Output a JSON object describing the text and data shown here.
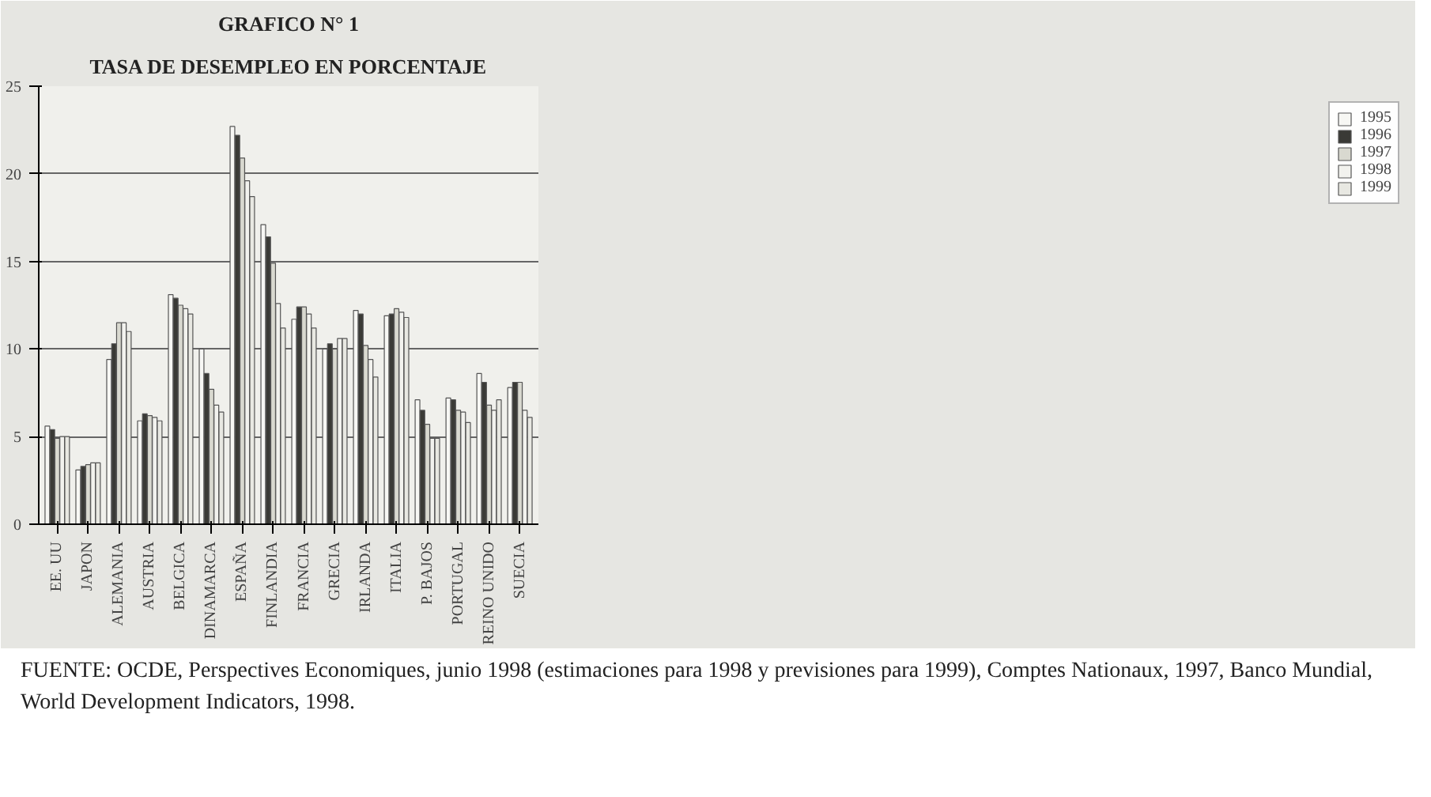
{
  "chart_data": {
    "type": "bar",
    "title": "GRAFICO N° 1",
    "subtitle": "TASA DE DESEMPLEO EN PORCENTAJE",
    "categories": [
      "EE. UU",
      "JAPON",
      "ALEMANIA",
      "AUSTRIA",
      "BELGICA",
      "DINAMARCA",
      "ESPAÑA",
      "FINLANDIA",
      "FRANCIA",
      "GRECIA",
      "IRLANDA",
      "ITALIA",
      "P. BAJOS",
      "PORTUGAL",
      "REINO UNIDO",
      "SUECIA"
    ],
    "series": [
      {
        "name": "1995",
        "color": "#f7f7f4",
        "values": [
          5.6,
          3.1,
          9.4,
          5.9,
          13.1,
          10.0,
          22.7,
          17.1,
          11.7,
          10.0,
          12.2,
          11.9,
          7.1,
          7.2,
          8.6,
          7.8
        ]
      },
      {
        "name": "1996",
        "color": "#3a3a36",
        "values": [
          5.4,
          3.3,
          10.3,
          6.3,
          12.9,
          8.6,
          22.2,
          16.4,
          12.4,
          10.3,
          12.0,
          12.0,
          6.5,
          7.1,
          8.1,
          8.1
        ]
      },
      {
        "name": "1997",
        "color": "#d9d9d0",
        "values": [
          4.9,
          3.4,
          11.5,
          6.2,
          12.5,
          7.7,
          20.9,
          14.9,
          12.4,
          10.0,
          10.2,
          12.3,
          5.7,
          6.5,
          6.8,
          8.1
        ]
      },
      {
        "name": "1998",
        "color": "#f2f2ee",
        "values": [
          5.0,
          3.5,
          11.5,
          6.1,
          12.3,
          6.8,
          19.6,
          12.6,
          12.0,
          10.6,
          9.4,
          12.1,
          4.9,
          6.4,
          6.5,
          6.5
        ]
      },
      {
        "name": "1999",
        "color": "#e8e8e2",
        "values": [
          5.0,
          3.5,
          11.0,
          5.9,
          12.0,
          6.4,
          18.7,
          11.2,
          11.2,
          10.6,
          8.4,
          11.8,
          4.9,
          5.8,
          7.1,
          6.1
        ]
      }
    ],
    "ylim": [
      0,
      25
    ],
    "yticks": [
      0,
      5,
      10,
      15,
      20,
      25
    ],
    "grid": "y",
    "legend": "right",
    "annotations": [
      "FUENTE: OCDE, Perspectives Economiques, junio 1998 (estimaciones para 1998 y previsiones para 1999), Comptes Nationaux, 1997, Banco Mundial, World Development Indicators, 1998."
    ]
  }
}
